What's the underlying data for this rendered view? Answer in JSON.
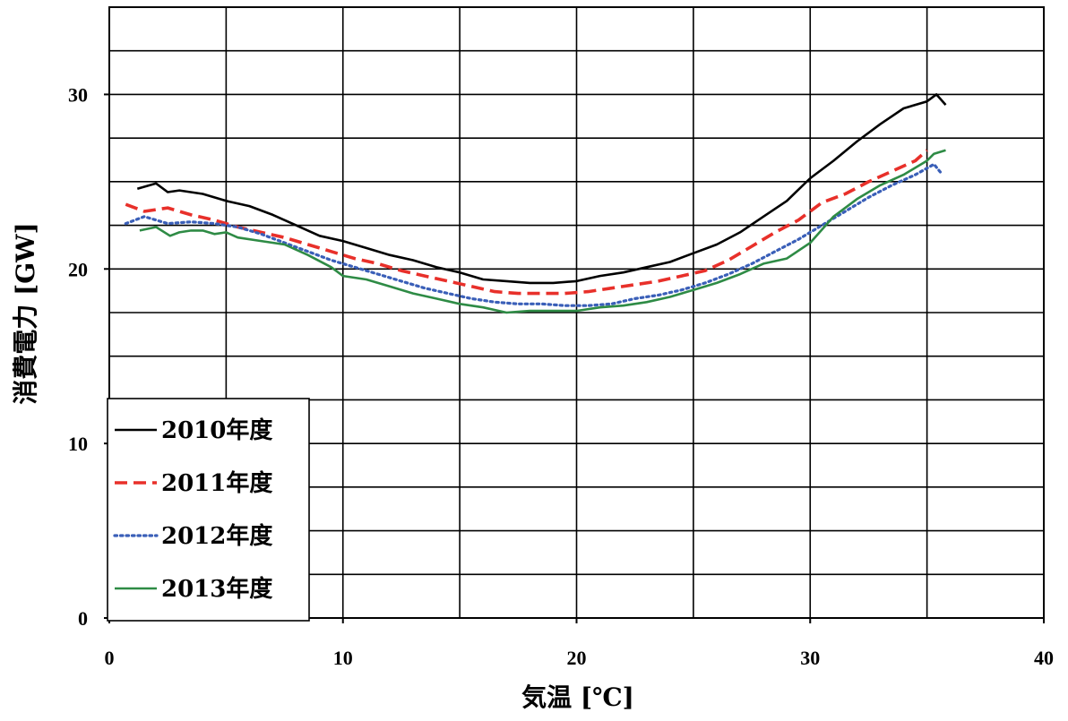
{
  "chart_data": {
    "type": "line",
    "title": "",
    "xlabel": "気温 [℃]",
    "ylabel": "消費電力 [GW]",
    "xlim": [
      0,
      40
    ],
    "ylim": [
      0,
      35
    ],
    "xticks": [
      0,
      10,
      20,
      30,
      40
    ],
    "yticks": [
      0,
      10,
      20,
      30
    ],
    "x_gridlines": [
      5,
      10,
      15,
      20,
      25,
      30,
      35
    ],
    "y_gridlines": [
      2.5,
      5,
      7.5,
      10,
      12.5,
      15,
      17.5,
      20,
      22.5,
      25,
      27.5,
      30,
      32.5
    ],
    "grid": true,
    "legend_position": "bottom-left",
    "series": [
      {
        "name": "2010年度",
        "color": "#000000",
        "style": "solid",
        "x": [
          1.2,
          2.0,
          2.5,
          3.0,
          4.0,
          5.0,
          6.0,
          7.0,
          8.0,
          9.0,
          10.0,
          11.0,
          12.0,
          13.0,
          14.0,
          15.0,
          16.0,
          17.0,
          18.0,
          19.0,
          20.0,
          21.0,
          22.0,
          23.0,
          24.0,
          25.0,
          26.0,
          27.0,
          28.0,
          29.0,
          30.0,
          31.0,
          32.0,
          33.0,
          34.0,
          35.0,
          35.4,
          35.8
        ],
        "y": [
          24.6,
          24.9,
          24.4,
          24.5,
          24.3,
          23.9,
          23.6,
          23.1,
          22.5,
          21.9,
          21.6,
          21.2,
          20.8,
          20.5,
          20.1,
          19.8,
          19.4,
          19.3,
          19.2,
          19.2,
          19.3,
          19.6,
          19.8,
          20.1,
          20.4,
          20.9,
          21.4,
          22.1,
          23.0,
          23.9,
          25.2,
          26.2,
          27.3,
          28.3,
          29.2,
          29.6,
          30.0,
          29.4
        ]
      },
      {
        "name": "2011年度",
        "color": "#e8302a",
        "style": "dashed",
        "x": [
          0.7,
          1.5,
          2.5,
          3.5,
          4.5,
          5.5,
          6.5,
          7.5,
          8.5,
          9.5,
          10.5,
          11.5,
          12.5,
          13.5,
          14.5,
          15.5,
          16.5,
          17.5,
          18.5,
          19.5,
          20.5,
          21.5,
          22.5,
          23.5,
          24.5,
          25.5,
          26.5,
          27.5,
          28.5,
          29.5,
          30.5,
          31.5,
          32.5,
          33.5,
          34.5,
          35.0
        ],
        "y": [
          23.7,
          23.3,
          23.5,
          23.1,
          22.8,
          22.4,
          22.1,
          21.8,
          21.4,
          21.0,
          20.6,
          20.3,
          19.9,
          19.6,
          19.3,
          19.0,
          18.7,
          18.6,
          18.6,
          18.6,
          18.7,
          18.9,
          19.1,
          19.3,
          19.6,
          19.9,
          20.5,
          21.3,
          22.1,
          22.8,
          23.8,
          24.3,
          25.0,
          25.6,
          26.2,
          26.8
        ]
      },
      {
        "name": "2012年度",
        "color": "#3a5fb8",
        "style": "dotted",
        "x": [
          0.7,
          1.5,
          2.5,
          3.5,
          4.5,
          5.5,
          6.5,
          7.5,
          8.5,
          9.5,
          10.5,
          11.5,
          12.5,
          13.5,
          14.5,
          15.5,
          16.5,
          17.5,
          18.5,
          19.5,
          20.5,
          21.5,
          22.5,
          23.5,
          24.5,
          25.5,
          26.5,
          27.5,
          28.5,
          29.5,
          30.5,
          31.5,
          32.5,
          33.5,
          34.5,
          35.3,
          35.6
        ],
        "y": [
          22.6,
          23.0,
          22.6,
          22.7,
          22.6,
          22.4,
          22.0,
          21.5,
          21.0,
          20.5,
          20.1,
          19.7,
          19.3,
          18.9,
          18.6,
          18.3,
          18.1,
          18.0,
          18.0,
          17.9,
          17.9,
          18.0,
          18.3,
          18.5,
          18.8,
          19.2,
          19.7,
          20.3,
          21.0,
          21.7,
          22.5,
          23.3,
          24.1,
          24.8,
          25.4,
          26.0,
          25.5
        ]
      },
      {
        "name": "2013年度",
        "color": "#2e8b45",
        "style": "solid",
        "x": [
          1.3,
          2.0,
          2.6,
          3.0,
          3.5,
          4.0,
          4.5,
          5.0,
          5.5,
          6.5,
          7.5,
          8.5,
          9.5,
          10.0,
          11.0,
          12.0,
          13.0,
          14.0,
          15.0,
          16.0,
          17.0,
          18.0,
          19.0,
          20.0,
          21.0,
          22.0,
          23.0,
          24.0,
          25.0,
          26.0,
          27.0,
          28.0,
          29.0,
          30.0,
          31.0,
          32.0,
          33.0,
          34.0,
          35.0,
          35.3,
          35.8
        ],
        "y": [
          22.2,
          22.4,
          21.9,
          22.1,
          22.2,
          22.2,
          22.0,
          22.1,
          21.8,
          21.6,
          21.4,
          20.8,
          20.1,
          19.6,
          19.4,
          19.0,
          18.6,
          18.3,
          18.0,
          17.8,
          17.5,
          17.6,
          17.6,
          17.6,
          17.8,
          17.9,
          18.1,
          18.4,
          18.8,
          19.2,
          19.7,
          20.3,
          20.6,
          21.5,
          23.0,
          24.0,
          24.8,
          25.4,
          26.2,
          26.6,
          26.8
        ]
      }
    ]
  }
}
